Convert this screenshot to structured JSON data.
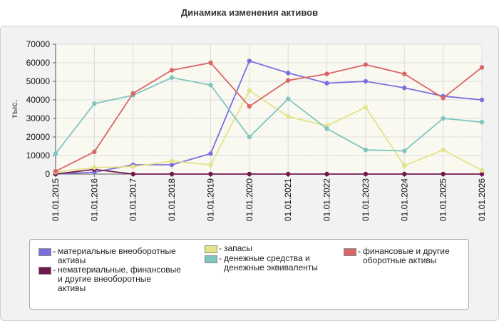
{
  "page": {
    "title": "Динамика изменения активов"
  },
  "chart_data": {
    "type": "line",
    "categories": [
      "01.01.2015",
      "01.01.2016",
      "01.01.2017",
      "01.01.2018",
      "01.01.2019",
      "01.01.2020",
      "01.01.2021",
      "01.01.2022",
      "01.01.2023",
      "01.01.2024",
      "01.01.2025",
      "01.01.2026"
    ],
    "ylabel": "тыс.",
    "ylim": [
      0,
      70000
    ],
    "yticks": [
      0,
      10000,
      20000,
      30000,
      40000,
      50000,
      60000,
      70000
    ],
    "grid": true,
    "legend_position": "bottom",
    "series": [
      {
        "name": "материальные внеоборотные активы",
        "color": "#7b6fe0",
        "values": [
          0,
          1000,
          5000,
          5000,
          11000,
          61000,
          54500,
          49000,
          50000,
          46500,
          42000,
          40000
        ]
      },
      {
        "name": "нематериальные, финансовые и другие внеоборотные активы",
        "color": "#73184f",
        "values": [
          0,
          2500,
          0,
          0,
          0,
          0,
          0,
          0,
          0,
          0,
          0,
          0
        ]
      },
      {
        "name": "запасы",
        "color": "#e3e38a",
        "values": [
          1000,
          3500,
          4000,
          7000,
          5000,
          45000,
          31000,
          26000,
          36000,
          4500,
          13000,
          2000
        ]
      },
      {
        "name": "денежные средства и денежные эквиваленты",
        "color": "#7fc6c0",
        "values": [
          11000,
          38000,
          42500,
          52000,
          48000,
          20000,
          40500,
          24500,
          13000,
          12500,
          30000,
          28000
        ]
      },
      {
        "name": "финансовые и другие оборотные активы",
        "color": "#d96666",
        "values": [
          1500,
          12000,
          43500,
          56000,
          60000,
          36500,
          50500,
          54000,
          59000,
          54000,
          41000,
          57500
        ]
      }
    ]
  },
  "legend": {
    "items": [
      {
        "label": "материальные внеоборотные активы",
        "color": "#7b6fe0"
      },
      {
        "label": "нематериальные, финансовые и другие внеоборотные активы",
        "color": "#73184f"
      },
      {
        "label": "запасы",
        "color": "#e3e38a"
      },
      {
        "label": "денежные средства и денежные эквиваленты",
        "color": "#7fc6c0"
      },
      {
        "label": "финансовые и другие оборотные активы",
        "color": "#d96666"
      }
    ]
  }
}
